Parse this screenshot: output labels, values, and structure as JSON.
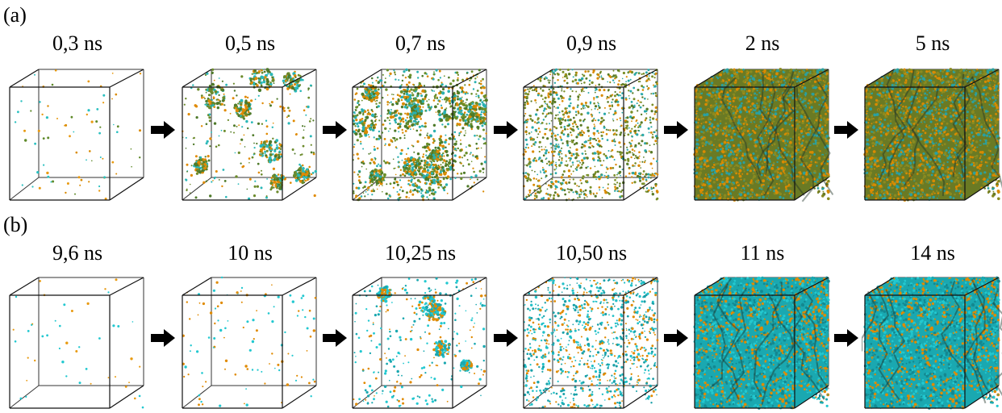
{
  "panels": [
    {
      "label": "(a)",
      "frames": [
        {
          "time": "0,3 ns",
          "fill": 0.02,
          "palette": [
            "#d98a00",
            "#e89a10",
            "#5f8a2a",
            "#2ac0c0"
          ],
          "clusters": 0
        },
        {
          "time": "0,5 ns",
          "fill": 0.12,
          "palette": [
            "#e08a00",
            "#6b8a2b",
            "#4f7a2a",
            "#2ab8b8"
          ],
          "clusters": 8
        },
        {
          "time": "0,7 ns",
          "fill": 0.38,
          "palette": [
            "#6a8f2a",
            "#4e7a28",
            "#d98a00",
            "#2ab0b0"
          ],
          "clusters": 14
        },
        {
          "time": "0,9 ns",
          "fill": 0.7,
          "palette": [
            "#7a8e28",
            "#5a7a26",
            "#d98a00",
            "#2aa8a8"
          ],
          "clusters": 0
        },
        {
          "time": "2 ns",
          "fill": 1.0,
          "palette": [
            "#8a8a20",
            "#6a7a24",
            "#d98a00",
            "#2aa0a0"
          ],
          "clusters": 0
        },
        {
          "time": "5 ns",
          "fill": 1.0,
          "palette": [
            "#8a8a20",
            "#6a7a24",
            "#d98a00",
            "#2aa0a0"
          ],
          "clusters": 0
        }
      ]
    },
    {
      "label": "(b)",
      "frames": [
        {
          "time": "9,6 ns",
          "fill": 0.005,
          "palette": [
            "#22c8d0",
            "#e89a10"
          ],
          "clusters": 0
        },
        {
          "time": "10 ns",
          "fill": 0.04,
          "palette": [
            "#e08a00",
            "#22c8d0"
          ],
          "clusters": 0
        },
        {
          "time": "10,25 ns",
          "fill": 0.14,
          "palette": [
            "#22c8d0",
            "#e08a00",
            "#1aa8b0"
          ],
          "clusters": 5
        },
        {
          "time": "10,50 ns",
          "fill": 0.55,
          "palette": [
            "#22c0c8",
            "#1aa0a8",
            "#e08a00"
          ],
          "clusters": 0
        },
        {
          "time": "11 ns",
          "fill": 1.0,
          "palette": [
            "#22c8d0",
            "#1aa8b0",
            "#148890",
            "#e08a00"
          ],
          "clusters": 0
        },
        {
          "time": "14 ns",
          "fill": 1.0,
          "palette": [
            "#22c8d0",
            "#1aa8b0",
            "#148890",
            "#e08a00"
          ],
          "clusters": 0
        }
      ]
    }
  ]
}
